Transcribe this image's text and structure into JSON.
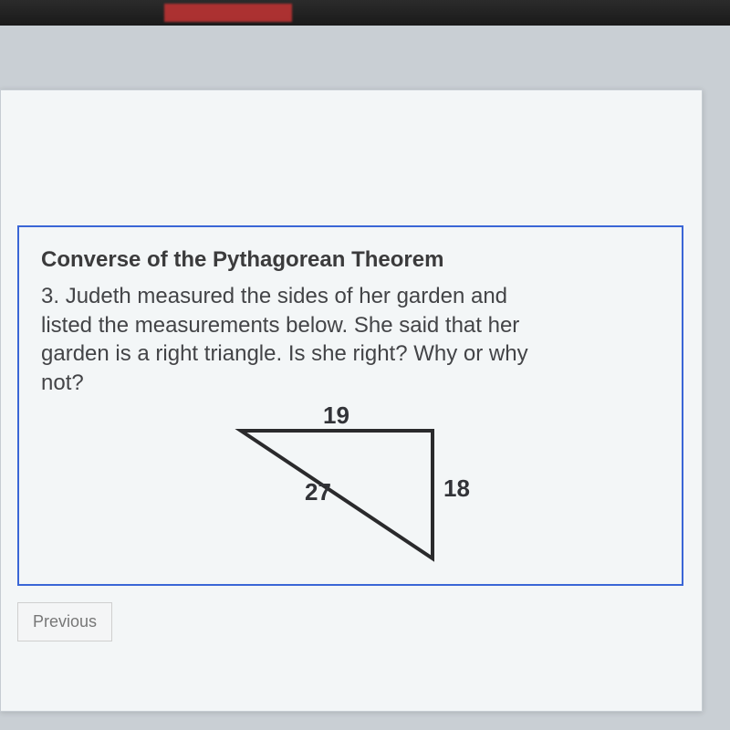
{
  "question": {
    "title": "Converse of the Pythagorean Theorem",
    "number": "3.",
    "text": "Judeth measured the sides of her garden and listed the measurements below.  She said that her garden is a right triangle.  Is she right? Why or why not?",
    "triangle": {
      "side_top": "19",
      "side_right": "18",
      "side_hypotenuse": "27",
      "stroke_color": "#2a2a2c",
      "stroke_width": 4,
      "label_fontsize": 26,
      "label_color": "#323338",
      "points": {
        "A": [
          40,
          30
        ],
        "B": [
          250,
          30
        ],
        "C": [
          250,
          170
        ]
      }
    }
  },
  "nav": {
    "previous_label": "Previous"
  },
  "colors": {
    "panel_border": "#3a66d6",
    "page_bg": "#f3f6f7",
    "desk_bg": "#c9cfd4",
    "body_bg": "#a8aeb5"
  }
}
